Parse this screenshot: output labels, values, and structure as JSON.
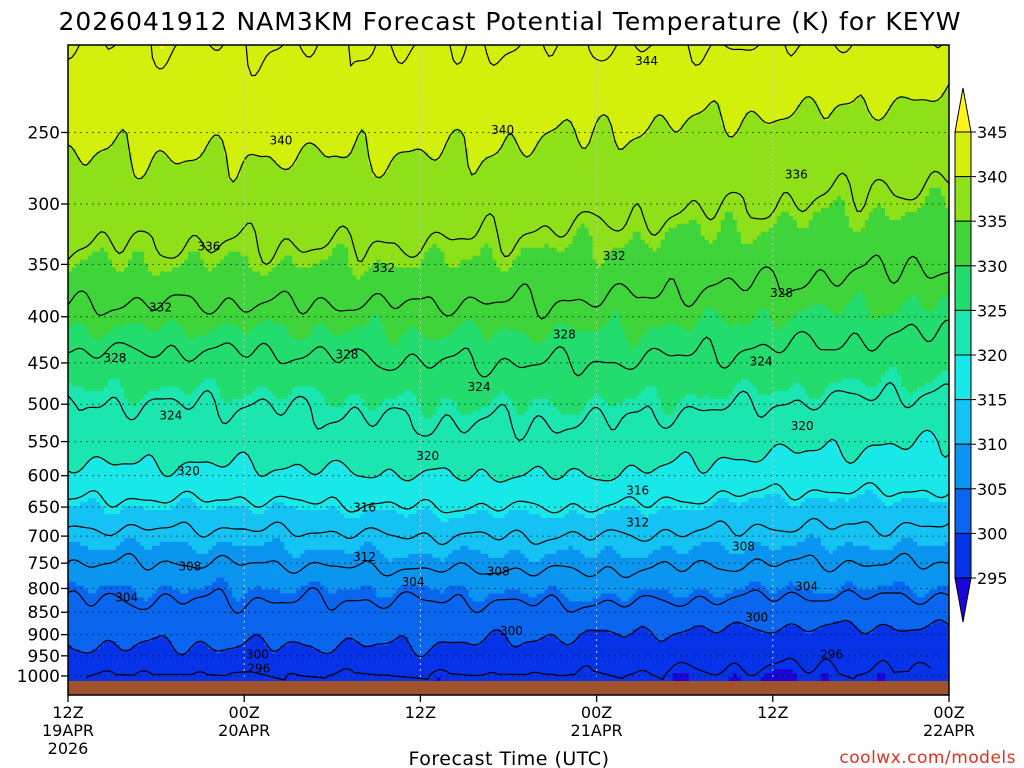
{
  "title": "2026041912 NAM3KM Forecast Potential Temperature (K) for KEYW",
  "watermark": "coolwx.com/models",
  "watermark_color": "#e0301e",
  "chart_data": {
    "type": "heatmap",
    "title": "2026041912 NAM3KM Forecast Potential Temperature (K) for KEYW",
    "xlabel": "Forecast Time (UTC)",
    "ylabel": "",
    "x_ticks": [
      {
        "hour": 0,
        "label": "12Z",
        "date": "19APR",
        "year": "2026"
      },
      {
        "hour": 12,
        "label": "00Z",
        "date": "20APR",
        "year": ""
      },
      {
        "hour": 24,
        "label": "12Z",
        "date": "",
        "year": ""
      },
      {
        "hour": 36,
        "label": "00Z",
        "date": "21APR",
        "year": ""
      },
      {
        "hour": 48,
        "label": "12Z",
        "date": "",
        "year": ""
      },
      {
        "hour": 60,
        "label": "00Z",
        "date": "22APR",
        "year": ""
      }
    ],
    "xlim": [
      0,
      60
    ],
    "y_ticks": [
      250,
      300,
      350,
      400,
      450,
      500,
      550,
      600,
      650,
      700,
      750,
      800,
      850,
      900,
      950,
      1000
    ],
    "ylim": [
      1013,
      200
    ],
    "y_scale": "log-pressure",
    "grid": true,
    "colorbar": {
      "levels": [
        295,
        300,
        305,
        310,
        315,
        320,
        325,
        330,
        335,
        340,
        345
      ],
      "colors": [
        "#1a06d8",
        "#0633e8",
        "#0a66ee",
        "#0a95f0",
        "#14c3f3",
        "#18e8e8",
        "#1ce6b0",
        "#22dc6e",
        "#3ed43a",
        "#8ee018",
        "#d2f00c",
        "#fff31a"
      ],
      "labels": [
        "345",
        "340",
        "335",
        "330",
        "325",
        "320",
        "315",
        "310",
        "305",
        "300",
        "295"
      ]
    },
    "ground_color": "#a0522d",
    "contour_interval": 4,
    "theta_profiles": [
      {
        "hour": 0,
        "pressure": [
          1000,
          950,
          900,
          850,
          800,
          750,
          700,
          650,
          600,
          550,
          500,
          450,
          400,
          350,
          300,
          250,
          200
        ],
        "theta": [
          296,
          299,
          301,
          303,
          305,
          308,
          311,
          315,
          319,
          322,
          324,
          327,
          331,
          335,
          338,
          341,
          344
        ]
      },
      {
        "hour": 12,
        "pressure": [
          1000,
          950,
          900,
          850,
          800,
          750,
          700,
          650,
          600,
          550,
          500,
          450,
          400,
          350,
          300,
          250,
          200
        ],
        "theta": [
          296,
          299,
          301,
          303,
          305,
          308,
          311,
          315,
          319,
          322,
          324,
          327,
          331,
          335,
          338,
          341,
          344
        ]
      },
      {
        "hour": 24,
        "pressure": [
          1000,
          950,
          900,
          850,
          800,
          750,
          700,
          650,
          600,
          550,
          500,
          450,
          400,
          350,
          300,
          250,
          200
        ],
        "theta": [
          296,
          299,
          301,
          303,
          305,
          309,
          312,
          316,
          320,
          323,
          325,
          328,
          331,
          335,
          338,
          341,
          344
        ]
      },
      {
        "hour": 36,
        "pressure": [
          1000,
          950,
          900,
          850,
          800,
          750,
          700,
          650,
          600,
          550,
          500,
          450,
          400,
          350,
          300,
          250,
          200
        ],
        "theta": [
          296,
          298,
          300,
          303,
          306,
          309,
          312,
          316,
          320,
          323,
          325,
          328,
          331,
          334,
          337,
          340,
          344
        ]
      },
      {
        "hour": 48,
        "pressure": [
          1000,
          950,
          900,
          850,
          800,
          750,
          700,
          650,
          600,
          550,
          500,
          450,
          400,
          350,
          300,
          250,
          200
        ],
        "theta": [
          295,
          297,
          299,
          302,
          305,
          308,
          311,
          314,
          318,
          321,
          324,
          327,
          330,
          333,
          336,
          339,
          344
        ]
      },
      {
        "hour": 60,
        "pressure": [
          1000,
          950,
          900,
          850,
          800,
          750,
          700,
          650,
          600,
          550,
          500,
          450,
          400,
          350,
          300,
          250,
          200
        ],
        "theta": [
          296,
          297,
          299,
          302,
          305,
          308,
          311,
          314,
          318,
          320,
          323,
          326,
          329,
          332,
          335,
          338,
          343
        ]
      }
    ],
    "contour_labels": [
      {
        "value": "344",
        "hour": 39.4,
        "pressure": 208
      },
      {
        "value": "340",
        "hour": 14.5,
        "pressure": 255
      },
      {
        "value": "340",
        "hour": 29.6,
        "pressure": 248
      },
      {
        "value": "336",
        "hour": 9.6,
        "pressure": 334
      },
      {
        "value": "336",
        "hour": 49.6,
        "pressure": 278
      },
      {
        "value": "332",
        "hour": 21.5,
        "pressure": 353
      },
      {
        "value": "332",
        "hour": 37.2,
        "pressure": 342
      },
      {
        "value": "332",
        "hour": 6.3,
        "pressure": 390
      },
      {
        "value": "328",
        "hour": 48.6,
        "pressure": 376
      },
      {
        "value": "328",
        "hour": 33.8,
        "pressure": 418
      },
      {
        "value": "328",
        "hour": 19.0,
        "pressure": 440
      },
      {
        "value": "328",
        "hour": 3.2,
        "pressure": 444
      },
      {
        "value": "324",
        "hour": 47.2,
        "pressure": 448
      },
      {
        "value": "324",
        "hour": 28.0,
        "pressure": 478
      },
      {
        "value": "324",
        "hour": 7.0,
        "pressure": 514
      },
      {
        "value": "320",
        "hour": 50.0,
        "pressure": 528
      },
      {
        "value": "320",
        "hour": 24.5,
        "pressure": 570
      },
      {
        "value": "320",
        "hour": 8.2,
        "pressure": 592
      },
      {
        "value": "316",
        "hour": 38.8,
        "pressure": 622
      },
      {
        "value": "316",
        "hour": 20.2,
        "pressure": 650
      },
      {
        "value": "312",
        "hour": 38.8,
        "pressure": 675
      },
      {
        "value": "312",
        "hour": 20.2,
        "pressure": 737
      },
      {
        "value": "308",
        "hour": 46.0,
        "pressure": 718
      },
      {
        "value": "308",
        "hour": 29.3,
        "pressure": 765
      },
      {
        "value": "308",
        "hour": 8.3,
        "pressure": 755
      },
      {
        "value": "304",
        "hour": 23.5,
        "pressure": 786
      },
      {
        "value": "304",
        "hour": 50.3,
        "pressure": 795
      },
      {
        "value": "304",
        "hour": 4.0,
        "pressure": 818
      },
      {
        "value": "300",
        "hour": 46.9,
        "pressure": 860
      },
      {
        "value": "300",
        "hour": 30.2,
        "pressure": 890
      },
      {
        "value": "300",
        "hour": 12.9,
        "pressure": 946
      },
      {
        "value": "296",
        "hour": 52.0,
        "pressure": 946
      },
      {
        "value": "296",
        "hour": 13.0,
        "pressure": 980
      }
    ]
  }
}
